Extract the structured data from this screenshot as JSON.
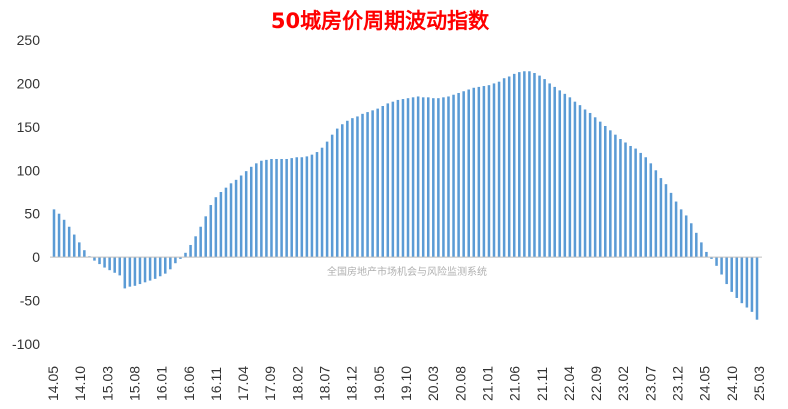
{
  "colors": {
    "bar": "#5b9bd5",
    "title": "#ff0000",
    "axis": "#bfbfbf",
    "text": "#333333"
  },
  "watermark": "全国房地产市场机会与风险监测系统",
  "chart_data": {
    "type": "bar",
    "title": "50城房价周期波动指数",
    "xlabel": "",
    "ylabel": "",
    "ylim": [
      -100,
      250
    ],
    "yticks": [
      "250",
      "200",
      "150",
      "100",
      "50",
      "0",
      "-50",
      "-100"
    ],
    "grid": false,
    "legend": "none",
    "x_tick_labels": [
      "14.05",
      "14.10",
      "15.03",
      "15.08",
      "16.01",
      "16.06",
      "16.11",
      "17.04",
      "17.09",
      "18.02",
      "18.07",
      "18.12",
      "19.05",
      "19.10",
      "20.03",
      "20.08",
      "21.01",
      "21.06",
      "21.11",
      "22.04",
      "22.09",
      "23.02",
      "23.07",
      "23.12",
      "24.05",
      "24.10",
      "25.03"
    ],
    "categories_start": "2014.05",
    "categories_end": "2025.03",
    "values": [
      55,
      50,
      43,
      35,
      26,
      17,
      8,
      1,
      -4,
      -8,
      -12,
      -15,
      -18,
      -21,
      -36,
      -34,
      -33,
      -31,
      -29,
      -27,
      -25,
      -22,
      -19,
      -14,
      -7,
      -2,
      5,
      14,
      24,
      35,
      47,
      60,
      69,
      75,
      80,
      85,
      89,
      94,
      99,
      104,
      108,
      111,
      112,
      113,
      113,
      113,
      113,
      114,
      115,
      115,
      116,
      118,
      121,
      126,
      133,
      141,
      148,
      153,
      157,
      160,
      162,
      165,
      167,
      169,
      171,
      174,
      177,
      179,
      181,
      182,
      183,
      184,
      185,
      184,
      184,
      183,
      183,
      184,
      185,
      187,
      189,
      191,
      193,
      195,
      196,
      197,
      198,
      200,
      202,
      206,
      208,
      211,
      213,
      214,
      214,
      212,
      209,
      205,
      200,
      196,
      192,
      188,
      184,
      179,
      175,
      170,
      166,
      161,
      156,
      151,
      146,
      141,
      136,
      132,
      128,
      125,
      120,
      115,
      108,
      100,
      91,
      84,
      74,
      64,
      55,
      48,
      39,
      28,
      17,
      6,
      -2,
      -10,
      -20,
      -31,
      -40,
      -47,
      -53,
      -58,
      -63,
      -72
    ]
  }
}
